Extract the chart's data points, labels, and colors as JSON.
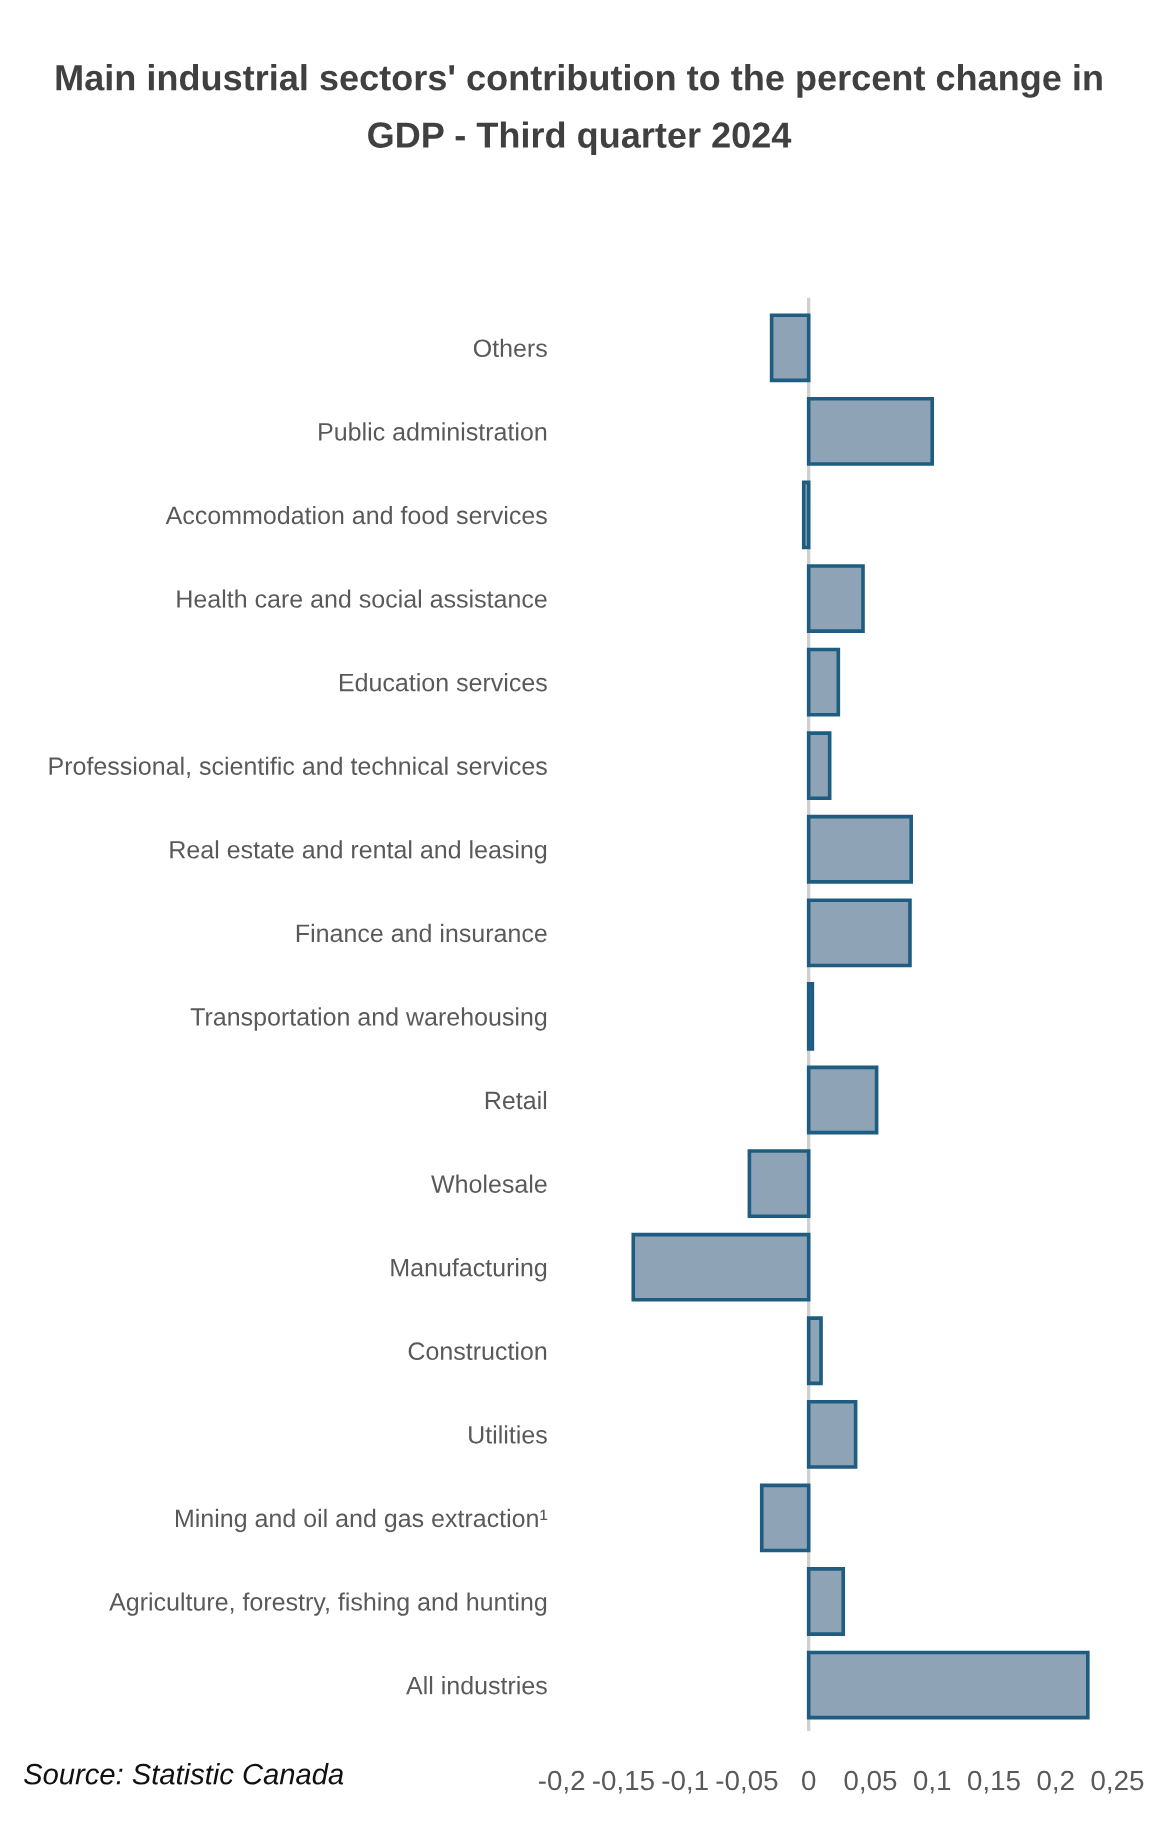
{
  "chart_data": {
    "type": "bar",
    "orientation": "horizontal",
    "title": "Main industrial sectors' contribution to the percent change in\nGDP - Third quarter 2024",
    "categories": [
      "Others",
      "Public administration",
      "Accommodation and food services",
      "Health care and social assistance",
      "Education services",
      "Professional, scientific and technical services",
      "Real estate and rental and leasing",
      "Finance and insurance",
      "Transportation and warehousing",
      "Retail",
      "Wholesale",
      "Manufacturing",
      "Construction",
      "Utilities",
      "Mining and oil and gas extraction¹",
      "Agriculture, forestry, fishing and hunting",
      "All industries"
    ],
    "values": [
      -0.03,
      0.1,
      -0.004,
      0.044,
      0.024,
      0.017,
      0.083,
      0.082,
      0.003,
      0.055,
      -0.048,
      -0.142,
      0.01,
      0.038,
      -0.038,
      0.028,
      0.226
    ],
    "color": "#8fa3b6",
    "xlim": [
      -0.2,
      0.25
    ],
    "xticks": [
      {
        "value": -0.2,
        "label": "-0,2"
      },
      {
        "value": -0.15,
        "label": "-0,15"
      },
      {
        "value": -0.1,
        "label": "-0,1"
      },
      {
        "value": -0.05,
        "label": "-0,05"
      },
      0,
      {
        "value": 0.05,
        "label": "0,05"
      },
      {
        "value": 0.1,
        "label": "0,1"
      },
      {
        "value": 0.15,
        "label": "0,15"
      },
      {
        "value": 0.2,
        "label": "0,2"
      },
      {
        "value": 0.25,
        "label": "0,25"
      }
    ],
    "grid": false,
    "ref_lines": [
      {
        "axis": "x",
        "value": 0,
        "color": "#d0d0d0"
      }
    ],
    "legend": false,
    "annotations": [
      "Source: Statistic Canada"
    ]
  }
}
